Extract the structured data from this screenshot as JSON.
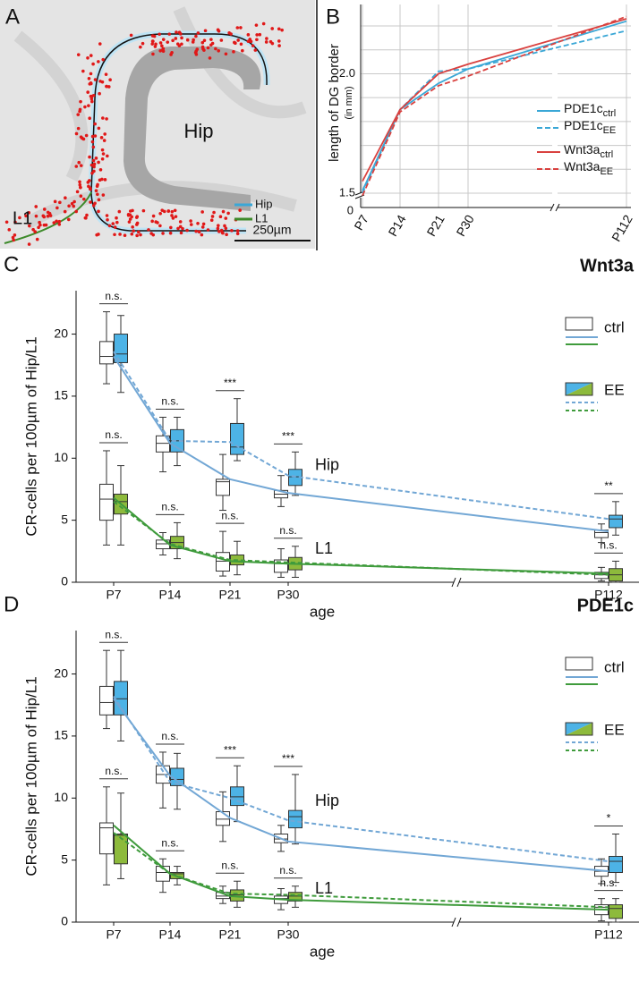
{
  "panel_a": {
    "letter": "A",
    "labels": [
      "Hip",
      "L1"
    ],
    "legend": [
      "Hip",
      "L1"
    ],
    "scale_bar": "250µm"
  },
  "chart_data": [
    {
      "type": "line",
      "letter": "B",
      "ylabel": "length of DG border",
      "ylabel_sub": "(in mm)",
      "categories": [
        "P7",
        "P14",
        "P21",
        "P30",
        "P112"
      ],
      "series": [
        {
          "name": "PDE1c",
          "sub": "ctrl",
          "color": "#3aa7d6",
          "dashed": false,
          "values": [
            1.51,
            1.85,
            1.96,
            2.02,
            2.22
          ]
        },
        {
          "name": "PDE1c",
          "sub": "EE",
          "color": "#3aa7d6",
          "dashed": true,
          "values": [
            1.5,
            1.85,
            2.01,
            2.02,
            2.18
          ]
        },
        {
          "name": "Wnt3a",
          "sub": "ctrl",
          "color": "#d9413f",
          "dashed": false,
          "values": [
            1.55,
            1.85,
            2.0,
            2.04,
            2.23
          ]
        },
        {
          "name": "Wnt3a",
          "sub": "EE",
          "color": "#d9413f",
          "dashed": true,
          "values": [
            1.49,
            1.84,
            1.95,
            1.99,
            2.24
          ]
        }
      ],
      "ylim": [
        1.44,
        2.29
      ],
      "yticks": [
        {
          "value": 1.5,
          "label": "1.5"
        },
        {
          "value": 2.0,
          "label": "2.0"
        }
      ],
      "minor_yticks": [
        1.6,
        1.7,
        1.8,
        1.9,
        2.1,
        2.2
      ],
      "ybreak_label": "0",
      "grid": true
    },
    {
      "type": "box",
      "letter": "C",
      "title": "Wnt3a",
      "ylabel": "CR-cells per 100µm of Hip/L1",
      "xlabel": "age",
      "categories": [
        "P7",
        "P14",
        "P21",
        "P30",
        "P112"
      ],
      "ylim": [
        0,
        23.5
      ],
      "yticks": [
        0,
        5,
        10,
        15,
        20
      ],
      "conditions": [
        {
          "name": "ctrl"
        },
        {
          "name": "EE"
        }
      ],
      "regions": [
        {
          "name": "Hip",
          "color": "#4db3e6",
          "line_color": "#72a7d5"
        },
        {
          "name": "L1",
          "color": "#8dba3c",
          "line_color": "#3f9b3c"
        }
      ],
      "boxes": [
        {
          "region": 0,
          "condition": 0,
          "fill": "#ffffff",
          "stats": [
            [
              16.0,
              17.6,
              18.2,
              19.4,
              21.8
            ],
            [
              8.9,
              10.5,
              11.2,
              11.8,
              13.3
            ],
            [
              5.8,
              7.0,
              8.1,
              8.3,
              10.3
            ],
            [
              6.1,
              6.8,
              7.1,
              7.4,
              8.6
            ],
            [
              3.2,
              3.6,
              4.0,
              4.2,
              4.7
            ]
          ]
        },
        {
          "region": 0,
          "condition": 1,
          "fill": "#4db3e6",
          "stats": [
            [
              15.3,
              17.7,
              18.4,
              20.0,
              21.5
            ],
            [
              9.4,
              10.5,
              11.4,
              12.3,
              13.3
            ],
            [
              9.8,
              10.3,
              10.9,
              12.8,
              14.8
            ],
            [
              7.0,
              7.8,
              8.5,
              9.1,
              10.5
            ],
            [
              3.8,
              4.4,
              5.1,
              5.4,
              6.5
            ]
          ]
        },
        {
          "region": 1,
          "condition": 0,
          "fill": "#ffffff",
          "stats": [
            [
              3.0,
              5.0,
              6.7,
              7.9,
              10.6
            ],
            [
              2.2,
              2.7,
              3.1,
              3.4,
              4.0
            ],
            [
              0.5,
              0.9,
              1.7,
              2.4,
              4.1
            ],
            [
              0.4,
              0.8,
              1.5,
              1.8,
              2.7
            ],
            [
              0.1,
              0.3,
              0.6,
              0.8,
              1.2
            ]
          ]
        },
        {
          "region": 1,
          "condition": 1,
          "fill": "#8dba3c",
          "stats": [
            [
              3.0,
              5.5,
              6.5,
              7.1,
              9.4
            ],
            [
              1.9,
              2.7,
              3.2,
              3.7,
              4.8
            ],
            [
              0.6,
              1.4,
              1.7,
              2.2,
              3.3
            ],
            [
              0.4,
              1.0,
              1.5,
              2.0,
              2.9
            ],
            [
              0,
              0.1,
              0.6,
              1.1,
              1.7
            ]
          ]
        }
      ],
      "lines": [
        {
          "region": 0,
          "condition": 0,
          "dashed": false,
          "values": [
            18.2,
            11.2,
            8.3,
            7.2,
            4.1
          ]
        },
        {
          "region": 0,
          "condition": 1,
          "dashed": true,
          "values": [
            18.6,
            11.4,
            11.3,
            8.6,
            5.1
          ]
        },
        {
          "region": 1,
          "condition": 0,
          "dashed": false,
          "values": [
            6.8,
            3.0,
            1.7,
            1.5,
            0.7
          ]
        },
        {
          "region": 1,
          "condition": 1,
          "dashed": true,
          "values": [
            6.5,
            3.1,
            1.8,
            1.6,
            0.6
          ]
        }
      ],
      "significance": [
        {
          "region": 0,
          "labels": [
            "n.s.",
            "n.s.",
            "***",
            "***",
            "**"
          ]
        },
        {
          "region": 1,
          "labels": [
            "n.s.",
            "n.s.",
            "n.s.",
            "n.s.",
            "n.s."
          ]
        }
      ]
    },
    {
      "type": "box",
      "letter": "D",
      "title": "PDE1c",
      "ylabel": "CR-cells per 100µm of Hip/L1",
      "xlabel": "age",
      "categories": [
        "P7",
        "P14",
        "P21",
        "P30",
        "P112"
      ],
      "ylim": [
        0,
        23.5
      ],
      "yticks": [
        0,
        5,
        10,
        15,
        20
      ],
      "conditions": [
        {
          "name": "ctrl"
        },
        {
          "name": "EE"
        }
      ],
      "regions": [
        {
          "name": "Hip",
          "color": "#4db3e6",
          "line_color": "#72a7d5"
        },
        {
          "name": "L1",
          "color": "#8dba3c",
          "line_color": "#3f9b3c"
        }
      ],
      "boxes": [
        {
          "region": 0,
          "condition": 0,
          "fill": "#ffffff",
          "stats": [
            [
              15.6,
              16.7,
              17.7,
              19.0,
              21.9
            ],
            [
              9.2,
              11.2,
              11.9,
              12.6,
              13.7
            ],
            [
              6.5,
              7.8,
              8.3,
              8.9,
              10.5
            ],
            [
              5.7,
              6.4,
              6.7,
              7.1,
              7.8
            ],
            [
              3.1,
              3.7,
              4.1,
              4.5,
              5.1
            ]
          ]
        },
        {
          "region": 0,
          "condition": 1,
          "fill": "#4db3e6",
          "stats": [
            [
              14.6,
              16.7,
              18.0,
              19.4,
              21.9
            ],
            [
              9.1,
              11.0,
              11.5,
              12.4,
              13.6
            ],
            [
              8.1,
              9.4,
              10.1,
              10.9,
              12.6
            ],
            [
              6.3,
              7.6,
              8.5,
              9.0,
              11.9
            ],
            [
              3.2,
              4.0,
              4.9,
              5.3,
              7.1
            ]
          ]
        },
        {
          "region": 1,
          "condition": 0,
          "fill": "#ffffff",
          "stats": [
            [
              3.0,
              5.5,
              7.6,
              8.0,
              10.9
            ],
            [
              2.4,
              3.3,
              4.0,
              4.5,
              5.1
            ],
            [
              1.5,
              1.9,
              2.1,
              2.4,
              2.9
            ],
            [
              1.0,
              1.5,
              1.9,
              2.1,
              2.7
            ],
            [
              0.1,
              0.6,
              1.2,
              1.4,
              1.9
            ]
          ]
        },
        {
          "region": 1,
          "condition": 1,
          "fill": "#8dba3c",
          "stats": [
            [
              3.5,
              4.7,
              7.0,
              7.1,
              10.4
            ],
            [
              3.0,
              3.5,
              3.9,
              4.0,
              4.5
            ],
            [
              1.2,
              1.7,
              2.2,
              2.6,
              3.3
            ],
            [
              1.2,
              1.7,
              2.1,
              2.4,
              2.9
            ],
            [
              0,
              0.3,
              1.1,
              1.4,
              1.9
            ]
          ]
        }
      ],
      "lines": [
        {
          "region": 0,
          "condition": 0,
          "dashed": false,
          "values": [
            18.0,
            11.8,
            8.4,
            6.5,
            4.1
          ]
        },
        {
          "region": 0,
          "condition": 1,
          "dashed": true,
          "values": [
            18.2,
            11.3,
            10.0,
            8.2,
            4.9
          ]
        },
        {
          "region": 1,
          "condition": 0,
          "dashed": false,
          "values": [
            7.8,
            3.9,
            2.1,
            1.8,
            1.0
          ]
        },
        {
          "region": 1,
          "condition": 1,
          "dashed": true,
          "values": [
            7.2,
            3.9,
            2.3,
            2.2,
            1.2
          ]
        }
      ],
      "significance": [
        {
          "region": 0,
          "labels": [
            "n.s.",
            "n.s.",
            "***",
            "***",
            "*"
          ]
        },
        {
          "region": 1,
          "labels": [
            "n.s.",
            "n.s.",
            "n.s.",
            "n.s.",
            "n.s."
          ]
        }
      ]
    }
  ]
}
